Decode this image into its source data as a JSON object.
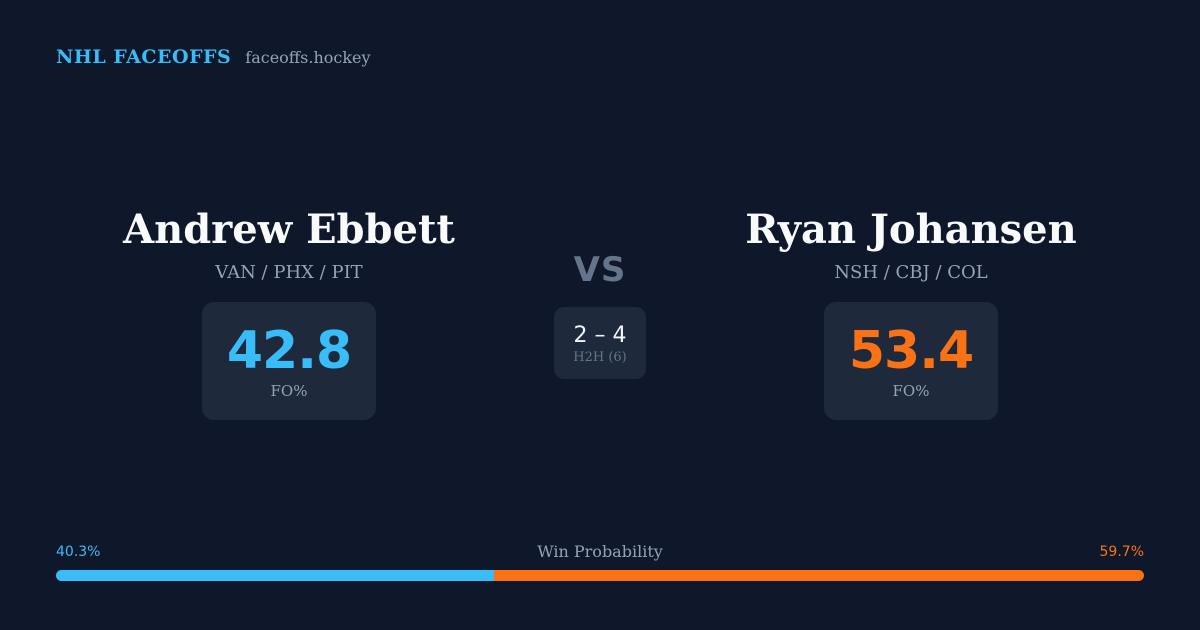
{
  "brand": {
    "name": "NHL FACEOFFS",
    "domain": "faceoffs.hockey"
  },
  "colors": {
    "left_accent": "#38bdf8",
    "right_accent": "#f97316",
    "background": "#0f172a",
    "card": "#1e293b",
    "muted_text": "#94a3b8"
  },
  "left_player": {
    "name": "Andrew Ebbett",
    "teams": "VAN / PHX / PIT",
    "fo_pct": "42.8",
    "fo_label": "FO%"
  },
  "right_player": {
    "name": "Ryan Johansen",
    "teams": "NSH / CBJ / COL",
    "fo_pct": "53.4",
    "fo_label": "FO%"
  },
  "matchup": {
    "vs": "VS",
    "h2h_record": "2 – 4",
    "h2h_label": "H2H (6)"
  },
  "win_probability": {
    "label": "Win Probability",
    "left_text": "40.3%",
    "right_text": "59.7%",
    "left_pct": 40.3,
    "right_pct": 59.7
  }
}
